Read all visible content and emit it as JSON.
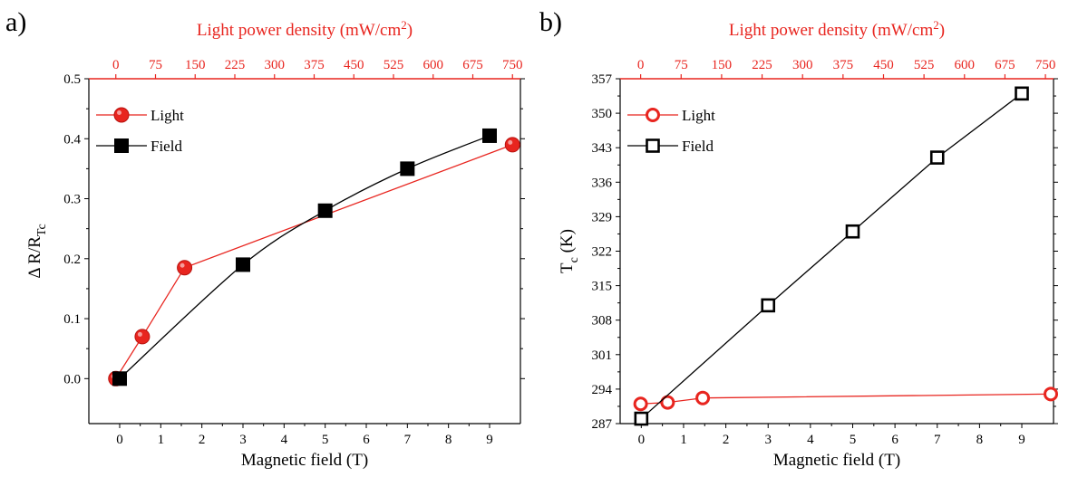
{
  "panel_labels": [
    "a)",
    "b)"
  ],
  "colors": {
    "light": "#e8251f",
    "field": "#000000"
  },
  "chart_data": [
    {
      "type": "line",
      "panel": "a)",
      "xlabel": "Magnetic field (T)",
      "x_top_label": "Light power density (mW/cm",
      "x_top_label_sup": "2",
      "x_top_label_end": ")",
      "ylabel": "Δ R/R",
      "ylabel_sub": "Tc",
      "xlim": [
        -0.75,
        9.75
      ],
      "ylim": [
        -0.075,
        0.5
      ],
      "x_ticks": [
        0,
        1,
        2,
        3,
        4,
        5,
        6,
        7,
        8,
        9
      ],
      "y_ticks": [
        0.0,
        0.1,
        0.2,
        0.3,
        0.4,
        0.5
      ],
      "y_tick_labels": [
        "0.0",
        "0.1",
        "0.2",
        "0.3",
        "0.4",
        "0.5"
      ],
      "top_ticks": [
        "0",
        "75",
        "150",
        "225",
        "300",
        "375",
        "450",
        "525",
        "600",
        "675",
        "750"
      ],
      "top_xlim": [
        -51,
        765
      ],
      "legend_position": "top-left",
      "series": [
        {
          "name": "Light",
          "axis": "top",
          "marker": "filled-circle",
          "x": [
            0,
            50,
            130,
            750
          ],
          "y": [
            0.0,
            0.07,
            0.185,
            0.39
          ]
        },
        {
          "name": "Field",
          "axis": "bottom",
          "marker": "filled-square",
          "smooth": true,
          "x": [
            0,
            3,
            5,
            7,
            9
          ],
          "y": [
            0.0,
            0.19,
            0.28,
            0.35,
            0.405
          ]
        }
      ]
    },
    {
      "type": "line",
      "panel": "b)",
      "xlabel": "Magnetic field (T)",
      "x_top_label": "Light power density (mW/cm",
      "x_top_label_sup": "2",
      "x_top_label_end": ")",
      "ylabel": "T",
      "ylabel_sub": "c",
      "ylabel_end": " (K)",
      "xlim": [
        -0.5,
        9.75
      ],
      "ylim": [
        287,
        357
      ],
      "x_ticks": [
        0,
        1,
        2,
        3,
        4,
        5,
        6,
        7,
        8,
        9
      ],
      "y_ticks": [
        287,
        294,
        301,
        308,
        315,
        322,
        329,
        336,
        343,
        350,
        357
      ],
      "y_tick_labels": [
        "287",
        "294",
        "301",
        "308",
        "315",
        "322",
        "329",
        "336",
        "343",
        "350",
        "357"
      ],
      "top_ticks": [
        "0",
        "75",
        "150",
        "225",
        "300",
        "375",
        "450",
        "525",
        "600",
        "675",
        "750"
      ],
      "top_xlim": [
        -38,
        765
      ],
      "legend_position": "top-left",
      "series": [
        {
          "name": "Light",
          "axis": "top",
          "marker": "open-circle",
          "x": [
            0,
            50,
            115,
            760
          ],
          "y": [
            291,
            291.3,
            292.2,
            293
          ]
        },
        {
          "name": "Field",
          "axis": "bottom",
          "marker": "open-square",
          "x": [
            0,
            3,
            5,
            7,
            9
          ],
          "y": [
            288,
            311,
            326,
            341,
            354
          ]
        }
      ]
    }
  ]
}
